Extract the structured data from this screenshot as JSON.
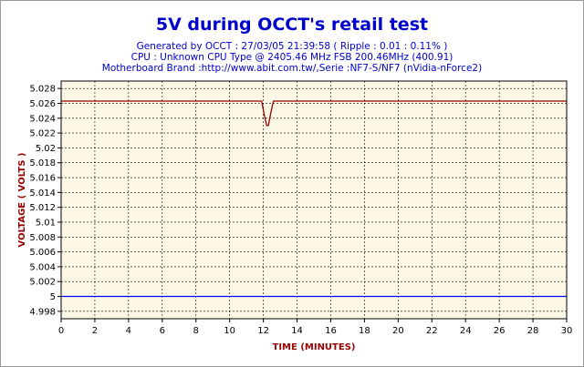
{
  "header": {
    "title": "5V during OCCT's retail test",
    "line1": "Generated by OCCT : 27/03/05 21:39:58 ( Ripple : 0.01 : 0.11% )",
    "line2": "CPU : Unknown CPU Type @ 2405.46 MHz FSB 200.46MHz (400.91)",
    "line3": "Motherboard Brand :http://www.abit.com.tw/,Serie :NF7-S/NF7 (nVidia-nForce2)"
  },
  "chart_data": {
    "type": "line",
    "title": "5V during OCCT's retail test",
    "xlabel": "TIME (MINUTES)",
    "ylabel": "VOLTAGE ( VOLTS )",
    "xlim": [
      0,
      30
    ],
    "ylim": [
      4.997,
      5.029
    ],
    "xticks": [
      0,
      2,
      4,
      6,
      8,
      10,
      12,
      14,
      16,
      18,
      20,
      22,
      24,
      26,
      28,
      30
    ],
    "yticks": [
      4.998,
      5,
      5.002,
      5.004,
      5.006,
      5.008,
      5.01,
      5.012,
      5.014,
      5.016,
      5.018,
      5.02,
      5.022,
      5.024,
      5.026,
      5.028
    ],
    "ytick_labels": [
      "4.998",
      "5",
      "5.002",
      "5.004",
      "5.006",
      "5.008",
      "5.01",
      "5.012",
      "5.014",
      "5.016",
      "5.018",
      "5.02",
      "5.022",
      "5.024",
      "5.026",
      "5.028"
    ],
    "grid": true,
    "series": [
      {
        "color": "#990000",
        "x": [
          0,
          11.9,
          12.05,
          12.2,
          12.3,
          12.45,
          12.6,
          30
        ],
        "y": [
          5.0263,
          5.0263,
          5.0245,
          5.023,
          5.023,
          5.0248,
          5.0263,
          5.0263
        ]
      },
      {
        "color": "#0000ff",
        "x": [
          0,
          30
        ],
        "y": [
          5.0,
          5.0
        ]
      }
    ],
    "colors": {
      "plot_background": "#fdf8e6",
      "grid": "#000000",
      "title": "#0000cc",
      "axis_label": "#990000"
    }
  }
}
